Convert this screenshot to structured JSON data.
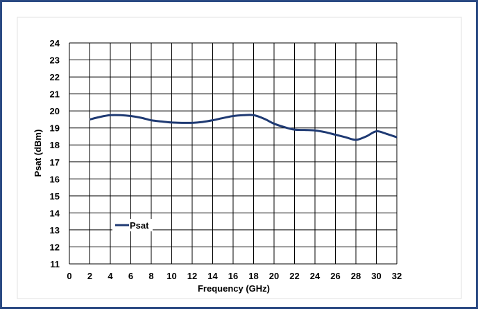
{
  "chart_data": {
    "type": "line",
    "xlabel": "Frequency (GHz)",
    "ylabel": "Psat (dBm)",
    "xlim": [
      0,
      32
    ],
    "ylim": [
      11,
      24
    ],
    "x_ticks": [
      0,
      2,
      4,
      6,
      8,
      10,
      12,
      14,
      16,
      18,
      20,
      22,
      24,
      26,
      28,
      30,
      32
    ],
    "y_ticks": [
      11,
      12,
      13,
      14,
      15,
      16,
      17,
      18,
      19,
      20,
      21,
      22,
      23,
      24
    ],
    "grid": true,
    "legend": "bottom-left",
    "series": [
      {
        "name": "Psat",
        "color": "#1f3a73",
        "x": [
          2,
          3,
          4,
          5,
          6,
          7,
          8,
          9,
          10,
          11,
          12,
          13,
          14,
          15,
          16,
          17,
          18,
          19,
          20,
          21,
          22,
          23,
          24,
          25,
          26,
          27,
          28,
          29,
          30,
          31,
          32
        ],
        "y": [
          19.5,
          19.65,
          19.75,
          19.75,
          19.7,
          19.6,
          19.45,
          19.38,
          19.32,
          19.3,
          19.3,
          19.35,
          19.45,
          19.58,
          19.7,
          19.75,
          19.75,
          19.55,
          19.25,
          19.05,
          18.9,
          18.88,
          18.85,
          18.75,
          18.6,
          18.45,
          18.3,
          18.5,
          18.8,
          18.65,
          18.45
        ]
      }
    ]
  }
}
